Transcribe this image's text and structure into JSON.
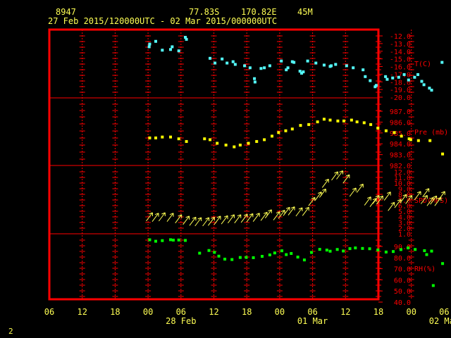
{
  "header": {
    "station": "8947",
    "lat": "77.83S",
    "lon": "170.82E",
    "elev": "45M",
    "range": "27 Feb 2015/120000UTC - 02 Mar 2015/000000UTC"
  },
  "footer_number": "2",
  "colors": {
    "background": "#000000",
    "frame": "#ff0000",
    "temp": "#54ffff",
    "pres": "#ffff00",
    "wind": "#ffff54",
    "rh": "#00ff00",
    "text": "#ffff54"
  },
  "chart_data": {
    "type": "scatter",
    "grid": true,
    "x_axis": {
      "range_hours": [
        -6,
        54
      ],
      "tick_labels": [
        "06",
        "12",
        "18",
        "00",
        "06",
        "12",
        "18",
        "00",
        "06",
        "12",
        "18",
        "00",
        "06"
      ],
      "date_labels": [
        {
          "hour": 18,
          "label": "28 Feb"
        },
        {
          "hour": 42,
          "label": "01 Mar"
        },
        {
          "hour": 66,
          "label": "02 Mar"
        }
      ]
    },
    "panels": [
      {
        "name": "temperature",
        "label": "T(C)",
        "ylim": [
          -20,
          -12
        ],
        "ticks": [
          "-12.0",
          "-13.0",
          "-14.0",
          "-15.0",
          "-16.0",
          "-17.0",
          "-18.0",
          "-19.0",
          "-20.0"
        ],
        "points": [
          [
            12.2,
            -13.5
          ],
          [
            12.3,
            -13.1
          ],
          [
            13.4,
            -12.7
          ],
          [
            14.6,
            -14.0
          ],
          [
            16.1,
            -13.9
          ],
          [
            16.4,
            -13.5
          ],
          [
            17.6,
            -14.1
          ],
          [
            18.8,
            -12.1
          ],
          [
            19.0,
            -12.4
          ],
          [
            23.3,
            -15.2
          ],
          [
            24.2,
            -15.9
          ],
          [
            25.5,
            -15.3
          ],
          [
            26.4,
            -15.9
          ],
          [
            27.5,
            -15.7
          ],
          [
            27.9,
            -16.1
          ],
          [
            29.6,
            -16.3
          ],
          [
            30.6,
            -16.6
          ],
          [
            31.4,
            -18.2
          ],
          [
            31.5,
            -18.7
          ],
          [
            32.6,
            -16.7
          ],
          [
            33.2,
            -16.6
          ],
          [
            34.2,
            -16.3
          ],
          [
            36.3,
            -15.6
          ],
          [
            37.2,
            -16.9
          ],
          [
            37.5,
            -16.6
          ],
          [
            38.3,
            -15.7
          ],
          [
            38.6,
            -15.8
          ],
          [
            39.7,
            -17.1
          ],
          [
            40.0,
            -17.4
          ],
          [
            40.3,
            -17.2
          ],
          [
            41.1,
            -15.6
          ],
          [
            42.6,
            -15.9
          ],
          [
            44.1,
            -16.2
          ],
          [
            45.2,
            -16.4
          ],
          [
            45.4,
            -16.3
          ],
          [
            46.2,
            -16.1
          ],
          [
            48.2,
            -16.3
          ],
          [
            49.4,
            -16.6
          ],
          [
            51.2,
            -16.9
          ],
          [
            51.6,
            -17.9
          ],
          [
            52.5,
            -18.5
          ],
          [
            53.4,
            -19.4
          ],
          [
            53.6,
            -19.2
          ],
          [
            55.3,
            -17.9
          ],
          [
            55.6,
            -18.3
          ],
          [
            56.6,
            -18.1
          ],
          [
            57.7,
            -18.0
          ],
          [
            58.7,
            -17.6
          ],
          [
            59.5,
            -18.4
          ],
          [
            60.6,
            -18.0
          ],
          [
            61.2,
            -17.6
          ],
          [
            61.9,
            -18.6
          ],
          [
            62.3,
            -19.1
          ],
          [
            63.3,
            -19.6
          ],
          [
            63.7,
            -19.9
          ],
          [
            65.6,
            -15.8
          ]
        ]
      },
      {
        "name": "pressure",
        "label": "Pre (mb)",
        "ylim": [
          982,
          988
        ],
        "ticks": [
          "987.0",
          "986.0",
          "985.0",
          "984.0",
          "983.0",
          "982.0"
        ],
        "points": [
          [
            12.3,
            984.3
          ],
          [
            13.4,
            984.3
          ],
          [
            14.6,
            984.4
          ],
          [
            16.1,
            984.4
          ],
          [
            17.6,
            984.2
          ],
          [
            19.0,
            983.9
          ],
          [
            22.3,
            984.2
          ],
          [
            23.3,
            984.1
          ],
          [
            24.6,
            983.7
          ],
          [
            26.2,
            983.5
          ],
          [
            27.7,
            983.3
          ],
          [
            28.8,
            983.5
          ],
          [
            30.3,
            983.7
          ],
          [
            31.8,
            983.9
          ],
          [
            33.2,
            984.1
          ],
          [
            34.6,
            984.5
          ],
          [
            35.8,
            984.9
          ],
          [
            37.1,
            985.1
          ],
          [
            38.3,
            985.3
          ],
          [
            39.8,
            985.7
          ],
          [
            41.3,
            985.8
          ],
          [
            42.9,
            986.1
          ],
          [
            44.1,
            986.4
          ],
          [
            45.2,
            986.3
          ],
          [
            46.6,
            986.2
          ],
          [
            47.7,
            986.2
          ],
          [
            49.1,
            986.3
          ],
          [
            50.1,
            986.1
          ],
          [
            51.4,
            986.0
          ],
          [
            52.6,
            985.8
          ],
          [
            53.9,
            985.4
          ],
          [
            55.4,
            985.1
          ],
          [
            56.9,
            984.9
          ],
          [
            58.2,
            984.5
          ],
          [
            59.6,
            984.2
          ],
          [
            59.9,
            984.1
          ],
          [
            61.3,
            984.0
          ],
          [
            63.4,
            984.0
          ],
          [
            65.7,
            982.5
          ]
        ]
      },
      {
        "name": "wind_speed",
        "label": "SPD(MPS)",
        "ylim": [
          1,
          12
        ],
        "ticks": [
          "12.0",
          "11.0",
          "10.0",
          "9.0",
          "8.0",
          "7.0",
          "6.0",
          "5.0",
          "4.0",
          "3.0",
          "2.0",
          "1.0"
        ],
        "points": [
          [
            12.3,
            3.0
          ],
          [
            13.4,
            2.9
          ],
          [
            14.6,
            3.0
          ],
          [
            16.1,
            2.9
          ],
          [
            17.6,
            2.6
          ],
          [
            19.0,
            2.3
          ],
          [
            20.2,
            2.1
          ],
          [
            21.2,
            2.0
          ],
          [
            22.6,
            2.0
          ],
          [
            23.6,
            2.1
          ],
          [
            24.7,
            2.3
          ],
          [
            26.0,
            2.4
          ],
          [
            27.2,
            2.6
          ],
          [
            28.4,
            2.6
          ],
          [
            29.6,
            2.7
          ],
          [
            30.6,
            2.8
          ],
          [
            31.8,
            2.9
          ],
          [
            33.2,
            3.1
          ],
          [
            34.0,
            3.6
          ],
          [
            35.5,
            3.2
          ],
          [
            36.4,
            3.5
          ],
          [
            37.3,
            4.1
          ],
          [
            38.2,
            4.2
          ],
          [
            39.6,
            4.0
          ],
          [
            40.8,
            4.1
          ],
          [
            41.9,
            6.1
          ],
          [
            43.1,
            7.2
          ],
          [
            43.9,
            7.8
          ],
          [
            44.4,
            9.8
          ],
          [
            46.1,
            11.3
          ],
          [
            47.0,
            11.5
          ],
          [
            48.2,
            10.7
          ],
          [
            49.4,
            8.0
          ],
          [
            50.7,
            8.8
          ],
          [
            52.1,
            6.2
          ],
          [
            53.1,
            5.9
          ],
          [
            53.6,
            6.5
          ],
          [
            54.3,
            6.4
          ],
          [
            55.7,
            7.2
          ],
          [
            56.4,
            5.1
          ],
          [
            57.6,
            5.7
          ],
          [
            58.6,
            6.7
          ],
          [
            59.6,
            6.5
          ],
          [
            61.2,
            7.3
          ],
          [
            62.4,
            6.5
          ],
          [
            62.7,
            7.9
          ],
          [
            63.5,
            6.1
          ],
          [
            64.1,
            6.4
          ],
          [
            64.9,
            6.1
          ],
          [
            65.6,
            7.3
          ]
        ]
      },
      {
        "name": "relative_humidity",
        "label": "RH(%)",
        "ylim": [
          40,
          90
        ],
        "ticks": [
          "90.0",
          "80.0",
          "70.0",
          "60.0",
          "50.0",
          "40.0"
        ],
        "points": [
          [
            12.3,
            91.0
          ],
          [
            13.4,
            89.6
          ],
          [
            14.6,
            90.2
          ],
          [
            16.1,
            91.1
          ],
          [
            16.6,
            90.7
          ],
          [
            17.6,
            90.8
          ],
          [
            18.8,
            90.4
          ],
          [
            21.4,
            78.0
          ],
          [
            23.1,
            80.6
          ],
          [
            24.1,
            78.8
          ],
          [
            24.9,
            75.1
          ],
          [
            26.0,
            72.2
          ],
          [
            27.3,
            71.8
          ],
          [
            28.8,
            73.8
          ],
          [
            29.9,
            73.9
          ],
          [
            31.2,
            73.6
          ],
          [
            32.8,
            74.9
          ],
          [
            34.2,
            76.3
          ],
          [
            35.1,
            78.2
          ],
          [
            36.4,
            80.3
          ],
          [
            37.2,
            76.6
          ],
          [
            38.1,
            77.7
          ],
          [
            39.3,
            74.2
          ],
          [
            40.5,
            71.4
          ],
          [
            41.8,
            78.7
          ],
          [
            43.3,
            81.7
          ],
          [
            44.6,
            81.0
          ],
          [
            45.2,
            79.9
          ],
          [
            46.5,
            81.6
          ],
          [
            47.6,
            80.1
          ],
          [
            48.8,
            82.4
          ],
          [
            49.8,
            83.1
          ],
          [
            51.1,
            82.6
          ],
          [
            52.4,
            82.3
          ],
          [
            53.9,
            81.1
          ],
          [
            55.4,
            79.1
          ],
          [
            56.7,
            79.6
          ],
          [
            58.1,
            81.5
          ],
          [
            59.4,
            83.1
          ],
          [
            60.7,
            81.6
          ],
          [
            62.4,
            80.4
          ],
          [
            62.8,
            76.6
          ],
          [
            63.7,
            80.0
          ],
          [
            64.0,
            46.5
          ],
          [
            65.7,
            67.9
          ]
        ]
      }
    ]
  }
}
